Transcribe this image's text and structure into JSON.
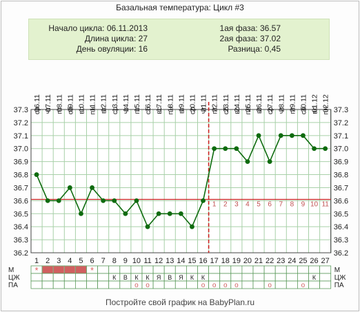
{
  "title": "Базальная температура: Цикл #3",
  "info": {
    "cycle_start": "Начало цикла: 06.11.2013",
    "cycle_length": "Длина цикла: 27",
    "ovulation_day": "День овуляции: 16",
    "phase1": "1ая фаза: 36.57",
    "phase2": "2ая фаза: 37.02",
    "difference": "Разница: 0,45"
  },
  "footer": "Постройте свой график на BabyPlan.ru",
  "chart_data": {
    "type": "line",
    "dates": [
      "06.11",
      "07.11",
      "08.11",
      "09.11",
      "10.11",
      "11.11",
      "12.11",
      "13.11",
      "14.11",
      "15.11",
      "16.11",
      "17.11",
      "18.11",
      "19.11",
      "20.11",
      "21.11",
      "22.11",
      "23.11",
      "24.11",
      "25.11",
      "26.11",
      "27.11",
      "28.11",
      "29.11",
      "30.11",
      "01.12",
      "02.12"
    ],
    "weekdays": [
      "ср",
      "чт",
      "пт",
      "сб",
      "вс",
      "пн",
      "вт",
      "ср",
      "чт",
      "пт",
      "сб",
      "вс",
      "пн",
      "вт",
      "ср",
      "чт",
      "пт",
      "сб",
      "вс",
      "пн",
      "вт",
      "ср",
      "чт",
      "пт",
      "сб",
      "вс",
      "пн"
    ],
    "days": [
      "1",
      "2",
      "3",
      "4",
      "5",
      "6",
      "7",
      "8",
      "9",
      "10",
      "11",
      "12",
      "13",
      "14",
      "15",
      "16",
      "17",
      "18",
      "19",
      "20",
      "21",
      "22",
      "23",
      "24",
      "25",
      "26",
      "27"
    ],
    "values": [
      36.8,
      36.6,
      36.6,
      36.7,
      36.5,
      36.7,
      36.6,
      36.6,
      36.5,
      36.6,
      36.4,
      36.5,
      36.5,
      36.5,
      36.4,
      36.6,
      37.0,
      37.0,
      37.0,
      36.9,
      37.1,
      36.9,
      37.1,
      37.1,
      37.1,
      37.0,
      37.0
    ],
    "ylim": [
      36.2,
      37.3
    ],
    "y_ticks": [
      "36.2",
      "36.3",
      "36.4",
      "36.5",
      "36.6",
      "36.7",
      "36.8",
      "36.9",
      "37.0",
      "37.1",
      "37.2",
      "37.3"
    ],
    "coverline": 36.61,
    "ovulation_day_index": 16,
    "luteal_labels": [
      "1",
      "2",
      "3",
      "4",
      "5",
      "6",
      "7",
      "8",
      "9",
      "10",
      "11"
    ],
    "grid": true
  },
  "rows": {
    "labels": [
      "М",
      "ЦЖ",
      "ПА"
    ],
    "m_star": "*",
    "m_star_days": [
      1,
      6
    ],
    "m_filled_days": [
      2,
      3,
      4,
      5
    ],
    "cj": [
      "",
      "",
      "",
      "",
      "",
      "",
      "",
      "К",
      "В",
      "К",
      "К",
      "Я",
      "В",
      "Я",
      "К",
      "К",
      "",
      "",
      "",
      "",
      "",
      "",
      "",
      "",
      "",
      "К",
      ""
    ],
    "pa_circle_days": [
      10,
      11,
      16,
      17,
      18,
      19,
      22,
      25
    ],
    "pa_circle": "o"
  },
  "colors": {
    "line": "#0e6b0e",
    "grid": "#a8d0a8",
    "coverline": "#cc2222",
    "ovulation": "#cc2222",
    "menstruation": "#d06060",
    "star": "#e06060"
  }
}
